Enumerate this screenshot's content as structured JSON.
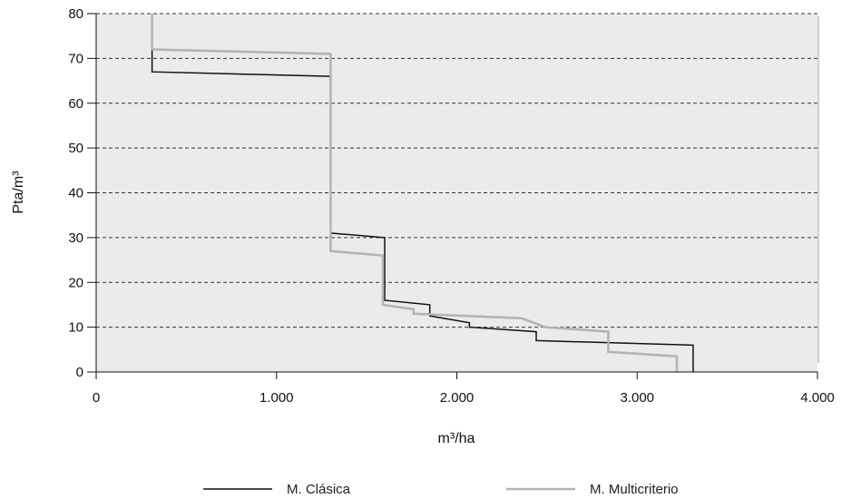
{
  "chart_data": {
    "type": "line",
    "step": true,
    "xlabel": "m³/ha",
    "ylabel": "Pta/m³",
    "xlim": [
      0,
      4000
    ],
    "ylim": [
      0,
      80
    ],
    "x_ticks": [
      0,
      1000,
      2000,
      3000,
      4000
    ],
    "x_tick_labels": [
      "0",
      "1.000",
      "2.000",
      "3.000",
      "4.000"
    ],
    "y_ticks": [
      0,
      10,
      20,
      30,
      40,
      50,
      60,
      70,
      80
    ],
    "y_tick_labels": [
      "0",
      "10",
      "20",
      "30",
      "40",
      "50",
      "60",
      "70",
      "80"
    ],
    "grid": "horizontal dashed",
    "plot_background": "#ebebeb",
    "legend_position": "bottom",
    "series": [
      {
        "name": "M. Clásica",
        "color": "#111111",
        "points": [
          [
            310,
            80
          ],
          [
            310,
            67
          ],
          [
            1300,
            66
          ],
          [
            1300,
            31
          ],
          [
            1600,
            30
          ],
          [
            1600,
            16
          ],
          [
            1850,
            15
          ],
          [
            1850,
            12.5
          ],
          [
            2070,
            11
          ],
          [
            2070,
            10
          ],
          [
            2440,
            9
          ],
          [
            2440,
            7
          ],
          [
            3310,
            6
          ],
          [
            3310,
            0
          ]
        ]
      },
      {
        "name": "M. Multicriterio",
        "color": "#b3b3b3",
        "points": [
          [
            310,
            80
          ],
          [
            310,
            72
          ],
          [
            1300,
            71
          ],
          [
            1300,
            27
          ],
          [
            1590,
            26
          ],
          [
            1590,
            15
          ],
          [
            1760,
            14
          ],
          [
            1760,
            13
          ],
          [
            2360,
            12
          ],
          [
            2490,
            10
          ],
          [
            2840,
            9
          ],
          [
            2840,
            4.5
          ],
          [
            3220,
            3.5
          ],
          [
            3220,
            0
          ]
        ]
      }
    ]
  }
}
